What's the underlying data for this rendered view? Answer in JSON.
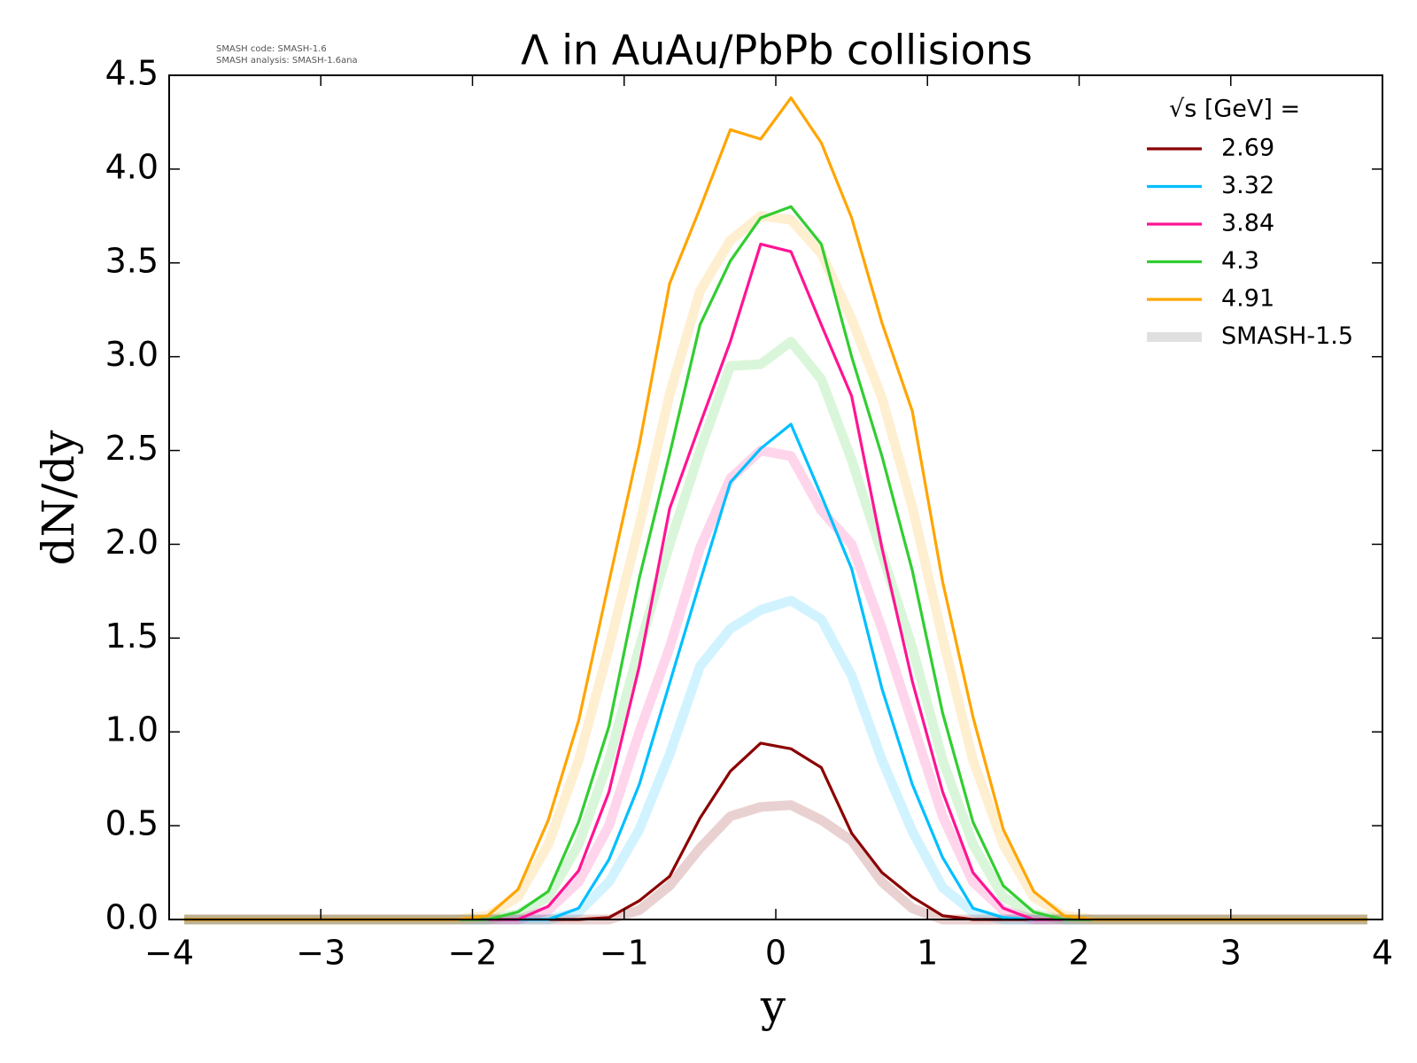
{
  "chart_data": {
    "type": "line",
    "title": "Λ in AuAu/PbPb collisions",
    "notes": [
      "SMASH code:      SMASH-1.6",
      "SMASH analysis: SMASH-1.6ana"
    ],
    "x_label": "y",
    "y_label": "dN/dy",
    "legend_title": "√s  [GeV] =",
    "legend": "upper right",
    "x": [
      -3.9,
      -3.7,
      -3.5,
      -3.3,
      -3.1,
      -2.9,
      -2.7,
      -2.5,
      -2.3,
      -2.1,
      -1.9,
      -1.7,
      -1.5,
      -1.3,
      -1.1,
      -0.9,
      -0.7,
      -0.5,
      -0.3,
      -0.1,
      0.1,
      0.3,
      0.5,
      0.7,
      0.9,
      1.1,
      1.3,
      1.5,
      1.7,
      1.9,
      2.1,
      2.3,
      2.5,
      2.7,
      2.9,
      3.1,
      3.3,
      3.5,
      3.7,
      3.9
    ],
    "series": [
      {
        "name": "2.69",
        "color": "#8b0000",
        "values": [
          0,
          0,
          0,
          0,
          0,
          0,
          0,
          0,
          0,
          0,
          0,
          0,
          0,
          0,
          0.01,
          0.1,
          0.23,
          0.54,
          0.79,
          0.94,
          0.91,
          0.81,
          0.46,
          0.25,
          0.12,
          0.02,
          0,
          0,
          0,
          0,
          0,
          0,
          0,
          0,
          0,
          0,
          0,
          0,
          0,
          0
        ]
      },
      {
        "name": "3.32",
        "color": "#00bfff",
        "values": [
          0,
          0,
          0,
          0,
          0,
          0,
          0,
          0,
          0,
          0,
          0,
          0,
          0,
          0.06,
          0.32,
          0.72,
          1.26,
          1.8,
          2.33,
          2.51,
          2.64,
          2.26,
          1.87,
          1.23,
          0.72,
          0.33,
          0.06,
          0.01,
          0,
          0,
          0,
          0,
          0,
          0,
          0,
          0,
          0,
          0,
          0,
          0
        ]
      },
      {
        "name": "3.84",
        "color": "#ff1493",
        "values": [
          0,
          0,
          0,
          0,
          0,
          0,
          0,
          0,
          0,
          0,
          0,
          0,
          0.07,
          0.26,
          0.68,
          1.35,
          2.19,
          2.64,
          3.08,
          3.6,
          3.56,
          3.17,
          2.79,
          1.98,
          1.27,
          0.68,
          0.25,
          0.06,
          0,
          0,
          0,
          0,
          0,
          0,
          0,
          0,
          0,
          0,
          0,
          0
        ]
      },
      {
        "name": "4.3",
        "color": "#32cd32",
        "values": [
          0,
          0,
          0,
          0,
          0,
          0,
          0,
          0,
          0,
          0,
          0,
          0.04,
          0.15,
          0.52,
          1.03,
          1.82,
          2.48,
          3.17,
          3.51,
          3.74,
          3.8,
          3.6,
          3.0,
          2.47,
          1.86,
          1.1,
          0.52,
          0.18,
          0.04,
          0,
          0,
          0,
          0,
          0,
          0,
          0,
          0,
          0,
          0,
          0
        ]
      },
      {
        "name": "4.91",
        "color": "#ffa500",
        "values": [
          0,
          0,
          0,
          0,
          0,
          0,
          0,
          0,
          0,
          0,
          0.02,
          0.16,
          0.53,
          1.06,
          1.8,
          2.53,
          3.39,
          3.79,
          4.21,
          4.16,
          4.38,
          4.14,
          3.74,
          3.18,
          2.71,
          1.8,
          1.08,
          0.48,
          0.15,
          0.02,
          0,
          0,
          0,
          0,
          0,
          0,
          0,
          0,
          0,
          0
        ]
      }
    ],
    "reference_name": "SMASH-1.5",
    "reference_color": "#e0e0e0",
    "reference_series": [
      {
        "color": "#8b0000",
        "values": [
          0,
          0,
          0,
          0,
          0,
          0,
          0,
          0,
          0,
          0,
          0,
          0,
          0,
          0,
          0,
          0.05,
          0.18,
          0.38,
          0.55,
          0.6,
          0.61,
          0.53,
          0.42,
          0.2,
          0.06,
          0,
          0,
          0,
          0,
          0,
          0,
          0,
          0,
          0,
          0,
          0,
          0,
          0,
          0,
          0
        ]
      },
      {
        "color": "#00bfff",
        "values": [
          0,
          0,
          0,
          0,
          0,
          0,
          0,
          0,
          0,
          0,
          0,
          0,
          0,
          0.04,
          0.2,
          0.48,
          0.88,
          1.35,
          1.55,
          1.65,
          1.7,
          1.6,
          1.3,
          0.85,
          0.47,
          0.17,
          0.04,
          0,
          0,
          0,
          0,
          0,
          0,
          0,
          0,
          0,
          0,
          0,
          0,
          0
        ]
      },
      {
        "color": "#ff1493",
        "values": [
          0,
          0,
          0,
          0,
          0,
          0,
          0,
          0,
          0,
          0,
          0,
          0,
          0.05,
          0.2,
          0.5,
          1.0,
          1.45,
          1.98,
          2.35,
          2.5,
          2.47,
          2.18,
          2.0,
          1.55,
          1.05,
          0.55,
          0.2,
          0.05,
          0,
          0,
          0,
          0,
          0,
          0,
          0,
          0,
          0,
          0,
          0,
          0
        ]
      },
      {
        "color": "#32cd32",
        "values": [
          0,
          0,
          0,
          0,
          0,
          0,
          0,
          0,
          0,
          0,
          0,
          0.03,
          0.12,
          0.4,
          0.85,
          1.45,
          2.0,
          2.5,
          2.95,
          2.96,
          3.08,
          2.88,
          2.45,
          1.95,
          1.45,
          0.85,
          0.4,
          0.12,
          0.03,
          0,
          0,
          0,
          0,
          0,
          0,
          0,
          0,
          0,
          0,
          0
        ]
      },
      {
        "color": "#ffa500",
        "values": [
          0,
          0,
          0,
          0,
          0,
          0,
          0,
          0,
          0,
          0,
          0.02,
          0.12,
          0.4,
          0.85,
          1.45,
          2.1,
          2.8,
          3.35,
          3.62,
          3.75,
          3.73,
          3.55,
          3.2,
          2.78,
          2.2,
          1.5,
          0.85,
          0.4,
          0.12,
          0.02,
          0,
          0,
          0,
          0,
          0,
          0,
          0,
          0,
          0,
          0
        ]
      }
    ],
    "xlim": [
      -4,
      4
    ],
    "xticks": [
      {
        "value": -4,
        "label": "−4"
      },
      {
        "value": -3,
        "label": "−3"
      },
      {
        "value": -2,
        "label": "−2"
      },
      {
        "value": -1,
        "label": "−1"
      },
      0,
      1,
      2,
      3,
      4
    ],
    "ylim": [
      0,
      4.5
    ],
    "yticks": [
      {
        "value": 0,
        "label": "0.0"
      },
      0.5,
      {
        "value": 1,
        "label": "1.0"
      },
      1.5,
      {
        "value": 2,
        "label": "2.0"
      },
      2.5,
      {
        "value": 3,
        "label": "3.0"
      },
      3.5,
      {
        "value": 4,
        "label": "4.0"
      },
      4.5
    ],
    "grid": false
  }
}
